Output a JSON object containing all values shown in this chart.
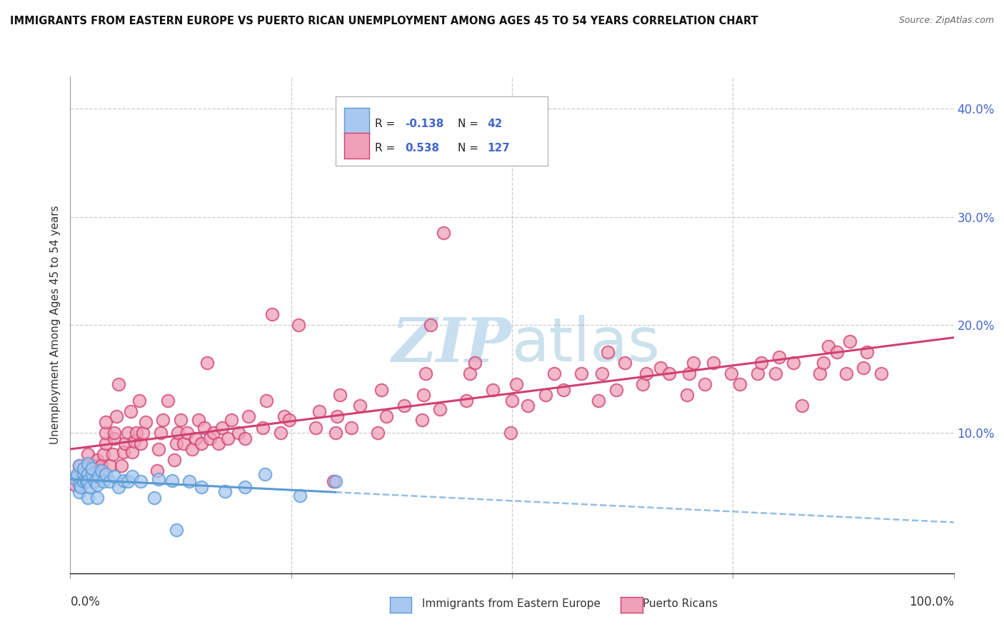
{
  "title": "IMMIGRANTS FROM EASTERN EUROPE VS PUERTO RICAN UNEMPLOYMENT AMONG AGES 45 TO 54 YEARS CORRELATION CHART",
  "source": "Source: ZipAtlas.com",
  "ylabel": "Unemployment Among Ages 45 to 54 years",
  "xlim": [
    0.0,
    1.0
  ],
  "ylim": [
    -0.03,
    0.43
  ],
  "color_blue": "#a8c8f0",
  "color_pink": "#f0a0b8",
  "line_blue": "#5b9bd5",
  "line_pink": "#d04070",
  "watermark_color": "#c8dff0",
  "background": "#ffffff",
  "grid_color": "#cccccc",
  "ytick_color": "#4466cc",
  "label_color": "#333333",
  "title_color": "#111111",
  "source_color": "#666666",
  "blue_scatter": [
    [
      0.005,
      0.058
    ],
    [
      0.008,
      0.062
    ],
    [
      0.01,
      0.07
    ],
    [
      0.01,
      0.045
    ],
    [
      0.01,
      0.052
    ],
    [
      0.012,
      0.05
    ],
    [
      0.015,
      0.062
    ],
    [
      0.015,
      0.067
    ],
    [
      0.015,
      0.055
    ],
    [
      0.018,
      0.055
    ],
    [
      0.02,
      0.062
    ],
    [
      0.02,
      0.072
    ],
    [
      0.02,
      0.04
    ],
    [
      0.02,
      0.055
    ],
    [
      0.022,
      0.05
    ],
    [
      0.025,
      0.062
    ],
    [
      0.025,
      0.067
    ],
    [
      0.028,
      0.055
    ],
    [
      0.03,
      0.052
    ],
    [
      0.03,
      0.04
    ],
    [
      0.032,
      0.06
    ],
    [
      0.035,
      0.065
    ],
    [
      0.038,
      0.055
    ],
    [
      0.04,
      0.062
    ],
    [
      0.045,
      0.055
    ],
    [
      0.05,
      0.06
    ],
    [
      0.055,
      0.05
    ],
    [
      0.06,
      0.056
    ],
    [
      0.065,
      0.055
    ],
    [
      0.07,
      0.06
    ],
    [
      0.08,
      0.055
    ],
    [
      0.095,
      0.04
    ],
    [
      0.1,
      0.057
    ],
    [
      0.115,
      0.056
    ],
    [
      0.135,
      0.055
    ],
    [
      0.148,
      0.05
    ],
    [
      0.175,
      0.046
    ],
    [
      0.198,
      0.05
    ],
    [
      0.22,
      0.062
    ],
    [
      0.26,
      0.042
    ],
    [
      0.12,
      0.01
    ],
    [
      0.3,
      0.055
    ]
  ],
  "pink_scatter": [
    [
      0.005,
      0.052
    ],
    [
      0.008,
      0.06
    ],
    [
      0.01,
      0.07
    ],
    [
      0.012,
      0.056
    ],
    [
      0.015,
      0.065
    ],
    [
      0.015,
      0.06
    ],
    [
      0.018,
      0.06
    ],
    [
      0.02,
      0.07
    ],
    [
      0.02,
      0.08
    ],
    [
      0.022,
      0.06
    ],
    [
      0.025,
      0.065
    ],
    [
      0.025,
      0.07
    ],
    [
      0.028,
      0.055
    ],
    [
      0.03,
      0.065
    ],
    [
      0.03,
      0.07
    ],
    [
      0.03,
      0.075
    ],
    [
      0.032,
      0.065
    ],
    [
      0.035,
      0.07
    ],
    [
      0.038,
      0.08
    ],
    [
      0.04,
      0.09
    ],
    [
      0.04,
      0.1
    ],
    [
      0.04,
      0.11
    ],
    [
      0.045,
      0.07
    ],
    [
      0.048,
      0.08
    ],
    [
      0.05,
      0.095
    ],
    [
      0.05,
      0.1
    ],
    [
      0.052,
      0.115
    ],
    [
      0.055,
      0.145
    ],
    [
      0.058,
      0.07
    ],
    [
      0.06,
      0.082
    ],
    [
      0.062,
      0.09
    ],
    [
      0.065,
      0.1
    ],
    [
      0.068,
      0.12
    ],
    [
      0.07,
      0.082
    ],
    [
      0.072,
      0.092
    ],
    [
      0.075,
      0.1
    ],
    [
      0.078,
      0.13
    ],
    [
      0.08,
      0.09
    ],
    [
      0.082,
      0.1
    ],
    [
      0.085,
      0.11
    ],
    [
      0.098,
      0.065
    ],
    [
      0.1,
      0.085
    ],
    [
      0.102,
      0.1
    ],
    [
      0.105,
      0.112
    ],
    [
      0.11,
      0.13
    ],
    [
      0.118,
      0.075
    ],
    [
      0.12,
      0.09
    ],
    [
      0.122,
      0.1
    ],
    [
      0.125,
      0.112
    ],
    [
      0.128,
      0.09
    ],
    [
      0.132,
      0.1
    ],
    [
      0.138,
      0.085
    ],
    [
      0.142,
      0.095
    ],
    [
      0.145,
      0.112
    ],
    [
      0.148,
      0.09
    ],
    [
      0.152,
      0.105
    ],
    [
      0.155,
      0.165
    ],
    [
      0.158,
      0.095
    ],
    [
      0.162,
      0.1
    ],
    [
      0.168,
      0.09
    ],
    [
      0.172,
      0.105
    ],
    [
      0.178,
      0.095
    ],
    [
      0.182,
      0.112
    ],
    [
      0.19,
      0.1
    ],
    [
      0.198,
      0.095
    ],
    [
      0.202,
      0.115
    ],
    [
      0.218,
      0.105
    ],
    [
      0.222,
      0.13
    ],
    [
      0.228,
      0.21
    ],
    [
      0.238,
      0.1
    ],
    [
      0.242,
      0.115
    ],
    [
      0.248,
      0.112
    ],
    [
      0.258,
      0.2
    ],
    [
      0.278,
      0.105
    ],
    [
      0.282,
      0.12
    ],
    [
      0.298,
      0.055
    ],
    [
      0.3,
      0.1
    ],
    [
      0.302,
      0.115
    ],
    [
      0.305,
      0.135
    ],
    [
      0.318,
      0.105
    ],
    [
      0.328,
      0.125
    ],
    [
      0.348,
      0.1
    ],
    [
      0.352,
      0.14
    ],
    [
      0.358,
      0.115
    ],
    [
      0.378,
      0.125
    ],
    [
      0.398,
      0.112
    ],
    [
      0.4,
      0.135
    ],
    [
      0.402,
      0.155
    ],
    [
      0.408,
      0.2
    ],
    [
      0.418,
      0.122
    ],
    [
      0.448,
      0.13
    ],
    [
      0.452,
      0.155
    ],
    [
      0.458,
      0.165
    ],
    [
      0.478,
      0.14
    ],
    [
      0.498,
      0.1
    ],
    [
      0.5,
      0.13
    ],
    [
      0.505,
      0.145
    ],
    [
      0.518,
      0.125
    ],
    [
      0.538,
      0.135
    ],
    [
      0.548,
      0.155
    ],
    [
      0.558,
      0.14
    ],
    [
      0.578,
      0.155
    ],
    [
      0.598,
      0.13
    ],
    [
      0.602,
      0.155
    ],
    [
      0.608,
      0.175
    ],
    [
      0.618,
      0.14
    ],
    [
      0.628,
      0.165
    ],
    [
      0.648,
      0.145
    ],
    [
      0.652,
      0.155
    ],
    [
      0.668,
      0.16
    ],
    [
      0.678,
      0.155
    ],
    [
      0.698,
      0.135
    ],
    [
      0.7,
      0.155
    ],
    [
      0.705,
      0.165
    ],
    [
      0.718,
      0.145
    ],
    [
      0.728,
      0.165
    ],
    [
      0.748,
      0.155
    ],
    [
      0.758,
      0.145
    ],
    [
      0.778,
      0.155
    ],
    [
      0.782,
      0.165
    ],
    [
      0.798,
      0.155
    ],
    [
      0.802,
      0.17
    ],
    [
      0.818,
      0.165
    ],
    [
      0.828,
      0.125
    ],
    [
      0.848,
      0.155
    ],
    [
      0.852,
      0.165
    ],
    [
      0.858,
      0.18
    ],
    [
      0.868,
      0.175
    ],
    [
      0.878,
      0.155
    ],
    [
      0.882,
      0.185
    ],
    [
      0.898,
      0.16
    ],
    [
      0.902,
      0.175
    ],
    [
      0.918,
      0.155
    ],
    [
      0.422,
      0.285
    ]
  ]
}
